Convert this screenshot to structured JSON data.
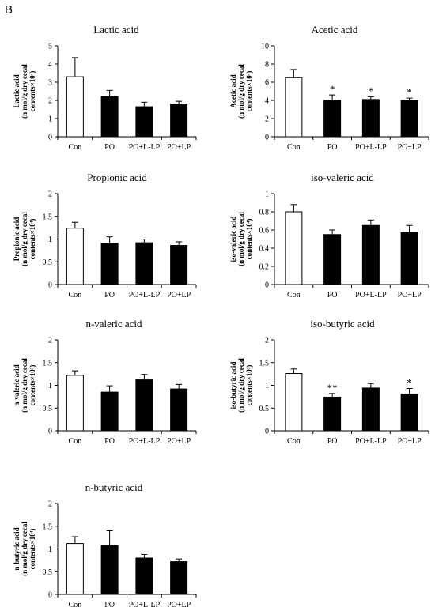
{
  "panel_label": "B",
  "colors": {
    "control": "#ffffff",
    "treatment": "#000000",
    "axis": "#000000"
  },
  "chart_data": [
    {
      "type": "bar",
      "title": "Lactic acid",
      "ylabel_lines": [
        "Lactic acid",
        "(n mol/g dry cecal",
        "contents×10⁴)"
      ],
      "categories": [
        "Con",
        "PO",
        "PO+L-LP",
        "PO+LP"
      ],
      "values": [
        3.3,
        2.2,
        1.65,
        1.8
      ],
      "errors": [
        1.05,
        0.35,
        0.25,
        0.15
      ],
      "significance": [
        "",
        "",
        "",
        ""
      ],
      "ylim": [
        0,
        5
      ],
      "yticks": [
        0,
        1,
        2,
        3,
        4,
        5
      ]
    },
    {
      "type": "bar",
      "title": "Acetic acid",
      "ylabel_lines": [
        "Acetic acid",
        "(n mol/g dry cecal",
        "contents×10⁴)"
      ],
      "categories": [
        "Con",
        "PO",
        "PO+L-LP",
        "PO+LP"
      ],
      "values": [
        6.5,
        4.0,
        4.1,
        4.0
      ],
      "errors": [
        0.9,
        0.6,
        0.3,
        0.25
      ],
      "significance": [
        "",
        "*",
        "*",
        "*"
      ],
      "ylim": [
        0,
        10
      ],
      "yticks": [
        0,
        2,
        4,
        6,
        8,
        10
      ]
    },
    {
      "type": "bar",
      "title": "Propionic acid",
      "ylabel_lines": [
        "Propionic acid",
        "(n mol/g dry cecal",
        "contents×10⁴)"
      ],
      "categories": [
        "Con",
        "PO",
        "PO+L-LP",
        "PO+LP"
      ],
      "values": [
        1.24,
        0.91,
        0.92,
        0.86
      ],
      "errors": [
        0.13,
        0.14,
        0.08,
        0.08
      ],
      "significance": [
        "",
        "",
        "",
        ""
      ],
      "ylim": [
        0,
        2
      ],
      "yticks": [
        0,
        0.5,
        1,
        1.5,
        2
      ]
    },
    {
      "type": "bar",
      "title": "iso-valeric acid",
      "ylabel_lines": [
        "iso-valeric acid",
        "(n mol/g dry cecal",
        "contents×10⁴)"
      ],
      "categories": [
        "Con",
        "PO",
        "PO+L-LP",
        "PO+LP"
      ],
      "values": [
        0.8,
        0.55,
        0.65,
        0.57
      ],
      "errors": [
        0.08,
        0.05,
        0.06,
        0.08
      ],
      "significance": [
        "",
        "",
        "",
        ""
      ],
      "ylim": [
        0,
        1
      ],
      "yticks": [
        0,
        0.2,
        0.4,
        0.6,
        0.8,
        1
      ]
    },
    {
      "type": "bar",
      "title": "n-valeric acid",
      "ylabel_lines": [
        "n-valeric acid",
        "(n mol/g dry cecal",
        "contents×10³)"
      ],
      "categories": [
        "Con",
        "PO",
        "PO+L-LP",
        "PO+LP"
      ],
      "values": [
        1.22,
        0.85,
        1.12,
        0.92
      ],
      "errors": [
        0.1,
        0.14,
        0.12,
        0.1
      ],
      "significance": [
        "",
        "",
        "",
        ""
      ],
      "ylim": [
        0,
        2
      ],
      "yticks": [
        0,
        0.5,
        1,
        1.5,
        2
      ]
    },
    {
      "type": "bar",
      "title": "iso-butyric acid",
      "ylabel_lines": [
        "iso-butyric acid",
        "(n mol/g dry cecal",
        "contents×10³)"
      ],
      "categories": [
        "Con",
        "PO",
        "PO+L-LP",
        "PO+LP"
      ],
      "values": [
        1.26,
        0.74,
        0.94,
        0.81
      ],
      "errors": [
        0.1,
        0.08,
        0.1,
        0.12
      ],
      "significance": [
        "",
        "**",
        "",
        "*"
      ],
      "ylim": [
        0,
        2
      ],
      "yticks": [
        0,
        0.5,
        1,
        1.5,
        2
      ]
    },
    {
      "type": "bar",
      "title": "n-butyric acid",
      "ylabel_lines": [
        "n-butyric acid",
        "(n mol/g dry cecal",
        "contents×10⁴)"
      ],
      "categories": [
        "Con",
        "PO",
        "PO+L-LP",
        "PO+LP"
      ],
      "values": [
        1.12,
        1.07,
        0.8,
        0.72
      ],
      "errors": [
        0.15,
        0.33,
        0.08,
        0.06
      ],
      "significance": [
        "",
        "",
        "",
        ""
      ],
      "ylim": [
        0,
        2
      ],
      "yticks": [
        0,
        0.5,
        1,
        1.5,
        2
      ]
    }
  ]
}
